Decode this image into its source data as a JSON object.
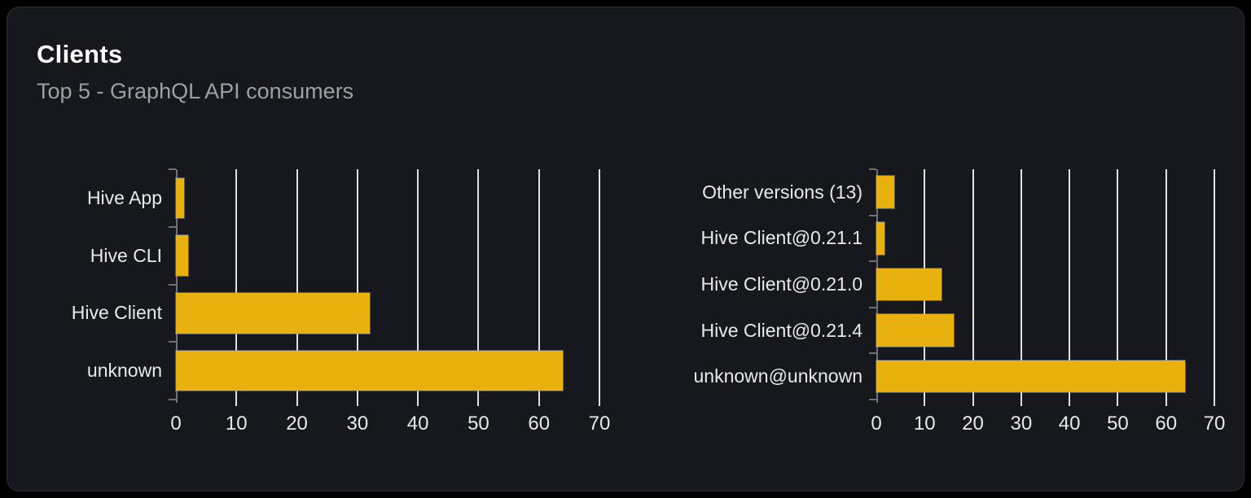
{
  "card": {
    "title": "Clients",
    "subtitle": "Top 5 - GraphQL API consumers"
  },
  "colors": {
    "page_bg": "#000000",
    "card_bg": "#16181e",
    "card_border": "#2b2e35",
    "title_text": "#ffffff",
    "subtitle_text": "#9aa0a8",
    "label_text": "#e8e9eb",
    "bar_fill": "#e9b10d",
    "bar_border": "rgba(150,154,162,0.5)",
    "gridline": "#dfe1e6",
    "axis": "#6e7177"
  },
  "chart_data": [
    {
      "type": "bar",
      "orientation": "horizontal",
      "title": "",
      "categories": [
        "Hive App",
        "Hive CLI",
        "Hive Client",
        "unknown"
      ],
      "values": [
        1.4,
        2,
        32,
        64
      ],
      "x_ticks": [
        0,
        10,
        20,
        30,
        40,
        50,
        60,
        70
      ],
      "xlim": [
        0,
        70
      ],
      "xlabel": "",
      "ylabel": "",
      "grid": true,
      "legend": false
    },
    {
      "type": "bar",
      "orientation": "horizontal",
      "title": "",
      "categories": [
        "Other versions (13)",
        "Hive Client@0.21.1",
        "Hive Client@0.21.0",
        "Hive Client@0.21.4",
        "unknown@unknown"
      ],
      "values": [
        3.7,
        1.7,
        13.5,
        16,
        64
      ],
      "x_ticks": [
        0,
        10,
        20,
        30,
        40,
        50,
        60,
        70
      ],
      "xlim": [
        0,
        70
      ],
      "xlabel": "",
      "ylabel": "",
      "grid": true,
      "legend": false
    }
  ]
}
